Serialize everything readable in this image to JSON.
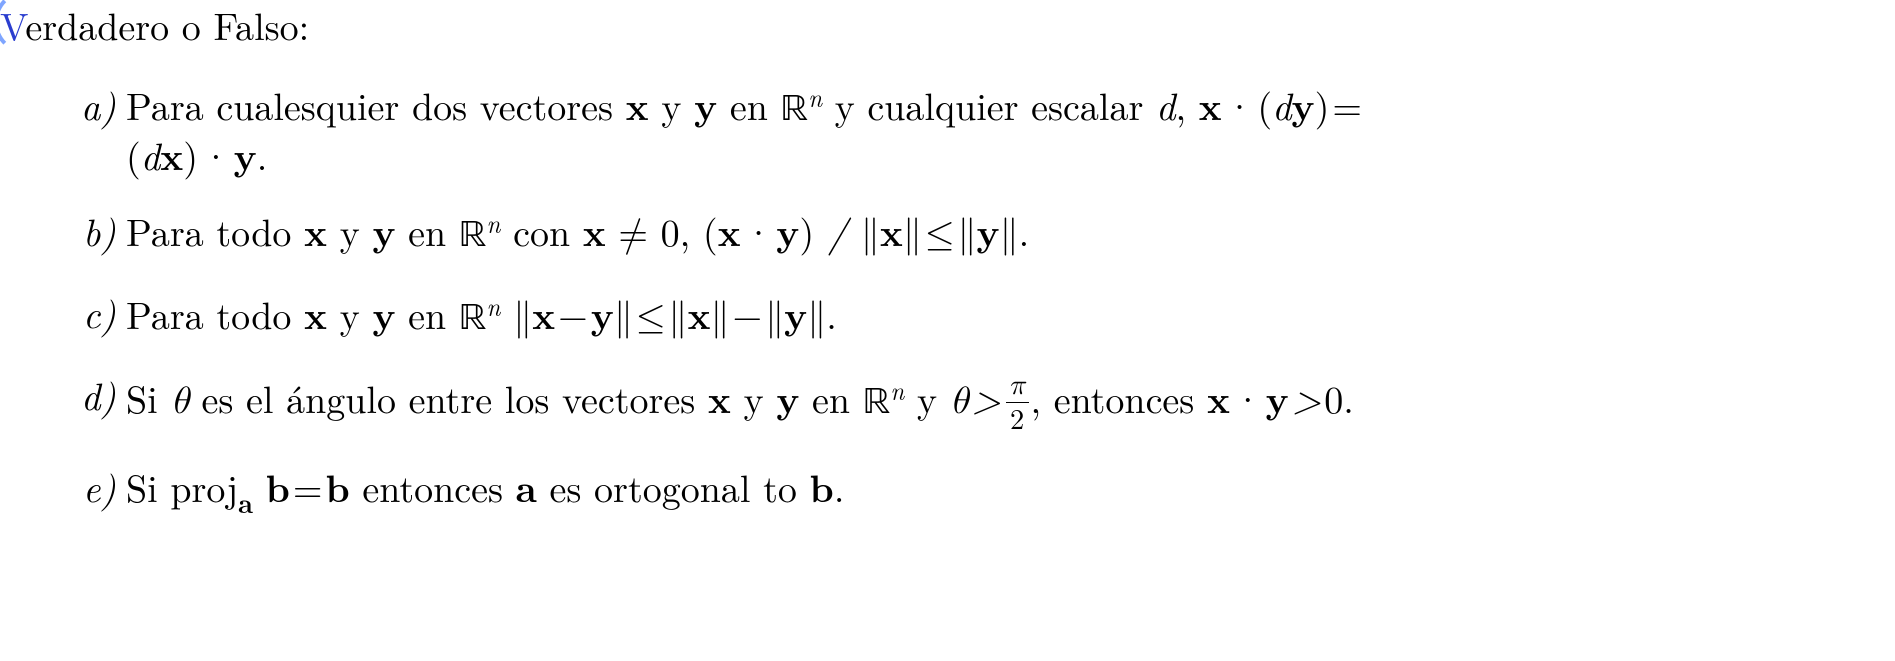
{
  "header": {
    "first_letter": "V",
    "rest": "erdadero o Falso:"
  },
  "items": {
    "a": {
      "marker": "a)",
      "t1": "Para cualesquier dos vectores ",
      "x1": "x",
      "t2": " y ",
      "y1": "y",
      "t3": " en ",
      "R": "ℝ",
      "n": "n",
      "t4": " y cualquier escalar ",
      "d1": "d",
      "t5": ", ",
      "x2": "x",
      "dot1": " · ",
      "lpar1": "(",
      "d2": "d",
      "y2": "y",
      "rpar1": ")",
      "eq": " =",
      "lpar2": "(",
      "d3": "d",
      "x3": "x",
      "rpar2": ")",
      "dot2": " · ",
      "y3": "y",
      "period": "."
    },
    "b": {
      "marker": "b)",
      "t1": "Para todo ",
      "x1": "x",
      "t2": " y ",
      "y1": "y",
      "t3": " en ",
      "R": "ℝ",
      "n": "n",
      "t4": " con ",
      "x2": "x",
      "neq": " ≠ ",
      "zero": "0, ",
      "lpar": "(",
      "x3": "x",
      "dot": " · ",
      "y2": "y",
      "rpar": ")",
      "slash": " / ",
      "nl1": "∥",
      "x4": "x",
      "nr1": "∥",
      "leq": " ≤ ",
      "nl2": "∥",
      "y3": "y",
      "nr2": "∥",
      "period": "."
    },
    "c": {
      "marker": "c)",
      "t1": "Para todo ",
      "x1": "x",
      "t2": " y ",
      "y1": "y",
      "t3": " en ",
      "R": "ℝ",
      "n": "n",
      "sp": "  ",
      "nl1": "∥",
      "x2": "x",
      "minus1": " − ",
      "y2": "y",
      "nr1": "∥",
      "leq": " ≤ ",
      "nl2": "∥",
      "x3": "x",
      "nr2": "∥",
      "minus2": " − ",
      "nl3": "∥",
      "y3": "y",
      "nr3": "∥",
      "period": "."
    },
    "d": {
      "marker": "d)",
      "t1": "Si ",
      "th1": "θ",
      "t2": " es el ángulo entre los vectores ",
      "x1": "x",
      "t3": " y ",
      "y1": "y",
      "t4": " en ",
      "R": "ℝ",
      "n": "n",
      "t5": " y ",
      "th2": "θ",
      "gt1": " > ",
      "pi": "π",
      "two": "2",
      "t6": ", entonces ",
      "x2": "x",
      "dot": " · ",
      "y2": "y",
      "gt2": " > ",
      "zero": "0",
      "period": "."
    },
    "e": {
      "marker": "e)",
      "t1": "Si ",
      "proj": "proj",
      "a1": "a",
      "sp1": " ",
      "b1": "b",
      "eq": " = ",
      "b2": "b",
      "t2": " entonces ",
      "a2": "a",
      "t3": " es ortogonal to ",
      "b3": "b",
      "period": "."
    }
  },
  "style": {
    "font_size_pt": 28,
    "text_color": "#000000",
    "accent_color": "#2b3ecf",
    "background_color": "#ffffff"
  }
}
